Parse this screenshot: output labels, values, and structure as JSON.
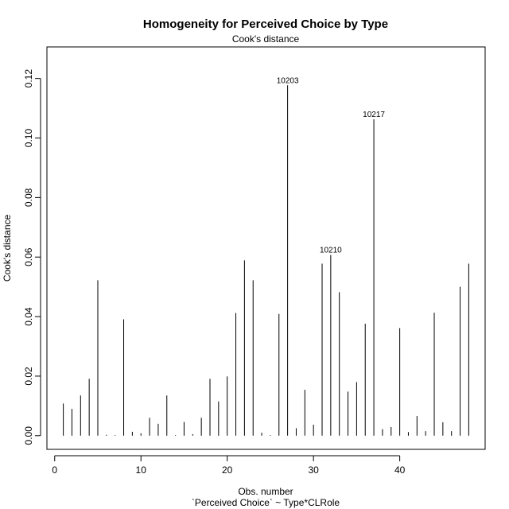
{
  "chart_data": {
    "type": "bar",
    "title": "Homogeneity for Perceived Choice by Type",
    "subtitle": "Cook's distance",
    "xlabel": "Obs. number",
    "xlabel2": "`Perceived Choice` ~ Type*CLRole",
    "ylabel": "Cook's distance",
    "xlim": [
      -0.9,
      49.9
    ],
    "ylim": [
      -0.0046,
      0.1306
    ],
    "xticks": [
      0,
      10,
      20,
      30,
      40
    ],
    "yticks": [
      0.0,
      0.02,
      0.04,
      0.06,
      0.08,
      0.1,
      0.12
    ],
    "ytick_labels": [
      "0.00",
      "0.02",
      "0.04",
      "0.06",
      "0.08",
      "0.10",
      "0.12"
    ],
    "grid": false,
    "x": [
      1,
      2,
      3,
      4,
      5,
      6,
      7,
      8,
      9,
      10,
      11,
      12,
      13,
      14,
      15,
      16,
      17,
      18,
      19,
      20,
      21,
      22,
      23,
      24,
      25,
      26,
      27,
      28,
      29,
      30,
      31,
      32,
      33,
      34,
      35,
      36,
      37,
      38,
      39,
      40,
      41,
      42,
      43,
      44,
      45,
      46,
      47,
      48
    ],
    "values": [
      0.0108,
      0.009,
      0.0135,
      0.0191,
      0.0522,
      0.0003,
      0.0002,
      0.0391,
      0.0013,
      0.0008,
      0.006,
      0.004,
      0.0135,
      0.0002,
      0.0046,
      0.0005,
      0.006,
      0.0191,
      0.0115,
      0.0199,
      0.0412,
      0.0589,
      0.0522,
      0.001,
      0.0002,
      0.0409,
      0.1177,
      0.0025,
      0.0154,
      0.0037,
      0.0578,
      0.0607,
      0.0482,
      0.0148,
      0.018,
      0.0376,
      0.1063,
      0.0022,
      0.0029,
      0.0361,
      0.0012,
      0.0066,
      0.0015,
      0.0413,
      0.0045,
      0.0015,
      0.05,
      0.0578
    ],
    "annotations": [
      {
        "x": 27,
        "y": 0.1177,
        "text": "10203"
      },
      {
        "x": 32,
        "y": 0.0607,
        "text": "10210"
      },
      {
        "x": 37,
        "y": 0.1063,
        "text": "10217"
      }
    ]
  }
}
